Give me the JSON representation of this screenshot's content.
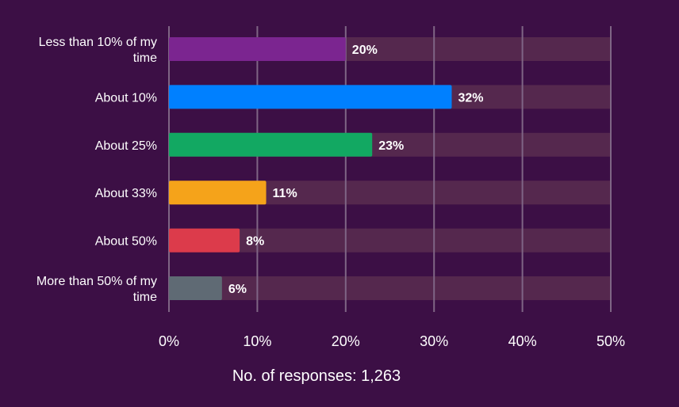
{
  "chart_data": {
    "type": "bar",
    "orientation": "horizontal",
    "categories": [
      "Less than 10% of my time",
      "About 10%",
      "About 25%",
      "About 33%",
      "About 50%",
      "More than 50% of my time"
    ],
    "category_lines": [
      [
        "Less than 10% of my",
        "time"
      ],
      [
        "About 10%"
      ],
      [
        "About 25%"
      ],
      [
        "About 33%"
      ],
      [
        "About 50%"
      ],
      [
        "More than 50% of my",
        "time"
      ]
    ],
    "values": [
      20,
      32,
      23,
      11,
      8,
      6
    ],
    "value_labels": [
      "20%",
      "32%",
      "23%",
      "11%",
      "8%",
      "6%"
    ],
    "colors": [
      "#7b2590",
      "#0080ff",
      "#12a862",
      "#f5a31a",
      "#dc3b4b",
      "#5f6a74"
    ],
    "xlim": [
      0,
      50
    ],
    "x_ticks": [
      0,
      10,
      20,
      30,
      40,
      50
    ],
    "x_tick_labels": [
      "0%",
      "10%",
      "20%",
      "30%",
      "40%",
      "50%"
    ],
    "grid": true,
    "footnote": "No. of responses: 1,263",
    "background_color": "#3c0f45",
    "track_color": "#55284e",
    "grid_color": "#7f6585"
  }
}
